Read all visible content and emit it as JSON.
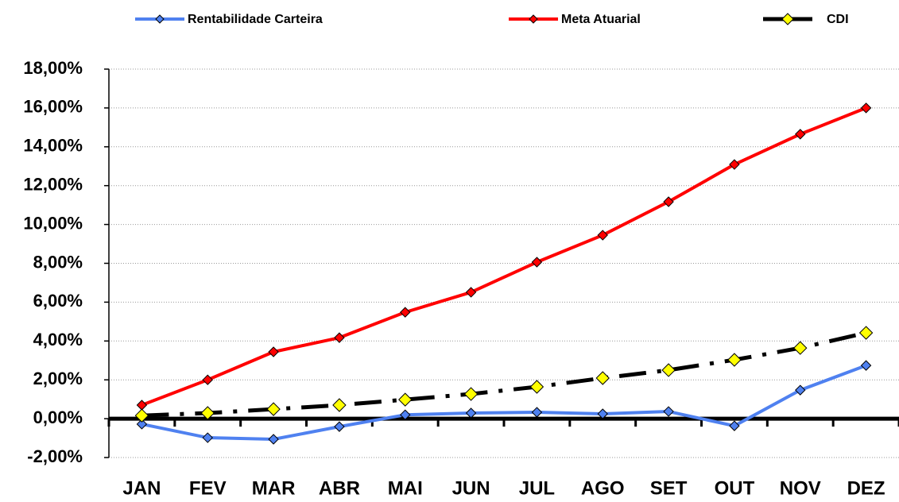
{
  "chart_data": {
    "type": "line",
    "categories": [
      "JAN",
      "FEV",
      "MAR",
      "ABR",
      "MAI",
      "JUN",
      "JUL",
      "AGO",
      "SET",
      "OUT",
      "NOV",
      "DEZ"
    ],
    "series": [
      {
        "name": "Rentabilidade Carteira",
        "color": "#4f81f0",
        "marker_color": "#4f81f0",
        "line_style": "solid",
        "values": [
          -0.28,
          -0.98,
          -1.06,
          -0.41,
          0.2,
          0.29,
          0.33,
          0.25,
          0.37,
          -0.37,
          1.47,
          2.74
        ]
      },
      {
        "name": "Meta Atuarial",
        "color": "#ff0000",
        "marker_color": "#ff0000",
        "line_style": "solid",
        "values": [
          0.7,
          2.0,
          3.44,
          4.17,
          5.48,
          6.51,
          8.06,
          9.45,
          11.17,
          13.09,
          14.65,
          16.0
        ]
      },
      {
        "name": "CDI",
        "color": "#000000",
        "marker_color": "#ffff00",
        "line_style": "dashed",
        "values": [
          0.16,
          0.29,
          0.49,
          0.7,
          0.98,
          1.27,
          1.64,
          2.09,
          2.5,
          3.03,
          3.64,
          4.42
        ]
      }
    ],
    "ylim": [
      -2,
      18
    ],
    "yticks": [
      {
        "value": -2,
        "label": "-2,00%"
      },
      {
        "value": 0,
        "label": "0,00%"
      },
      {
        "value": 2,
        "label": "2,00%"
      },
      {
        "value": 4,
        "label": "4,00%"
      },
      {
        "value": 6,
        "label": "6,00%"
      },
      {
        "value": 8,
        "label": "8,00%"
      },
      {
        "value": 10,
        "label": "10,00%"
      },
      {
        "value": 12,
        "label": "12,00%"
      },
      {
        "value": 14,
        "label": "14,00%"
      },
      {
        "value": 16,
        "label": "16,00%"
      },
      {
        "value": 18,
        "label": "18,00%"
      }
    ],
    "grid": true,
    "legend": "top"
  }
}
